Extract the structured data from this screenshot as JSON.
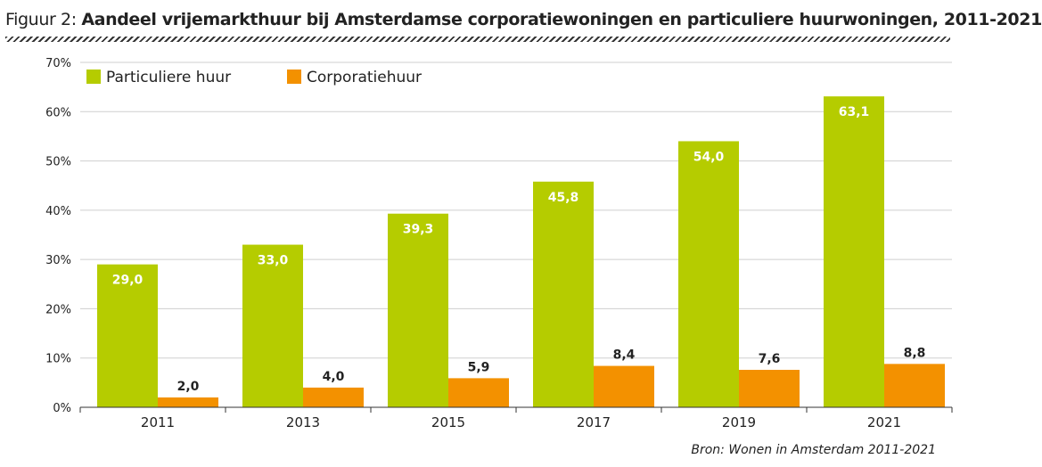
{
  "figure": {
    "prefix": "Figuur 2:",
    "title": "Aandeel vrijemarkthuur bij Amsterdamse corporatiewoningen en particuliere huurwoningen, 2011-2021",
    "source": "Bron: Wonen in Amsterdam 2011-2021"
  },
  "chart_data": {
    "type": "bar",
    "title": "Aandeel vrijemarkthuur bij Amsterdamse corporatiewoningen en particuliere huurwoningen, 2011-2021",
    "xlabel": "",
    "ylabel": "",
    "categories": [
      "2011",
      "2013",
      "2015",
      "2017",
      "2019",
      "2021"
    ],
    "series": [
      {
        "name": "Particuliere huur",
        "color": "#b5cc00",
        "values": [
          29.0,
          33.0,
          39.3,
          45.8,
          54.0,
          63.1
        ],
        "labels": [
          "29,0",
          "33,0",
          "39,3",
          "45,8",
          "54,0",
          "63,1"
        ]
      },
      {
        "name": "Corporatiehuur",
        "color": "#f39100",
        "values": [
          2.0,
          4.0,
          5.9,
          8.4,
          7.6,
          8.8
        ],
        "labels": [
          "2,0",
          "4,0",
          "5,9",
          "8,4",
          "7,6",
          "8,8"
        ]
      }
    ],
    "ylim": [
      0,
      70
    ],
    "yticks": [
      0,
      10,
      20,
      30,
      40,
      50,
      60,
      70
    ],
    "ytick_labels": [
      "0%",
      "10%",
      "20%",
      "30%",
      "40%",
      "50%",
      "60%",
      "70%"
    ],
    "grid": true,
    "legend_position": "top-left"
  }
}
